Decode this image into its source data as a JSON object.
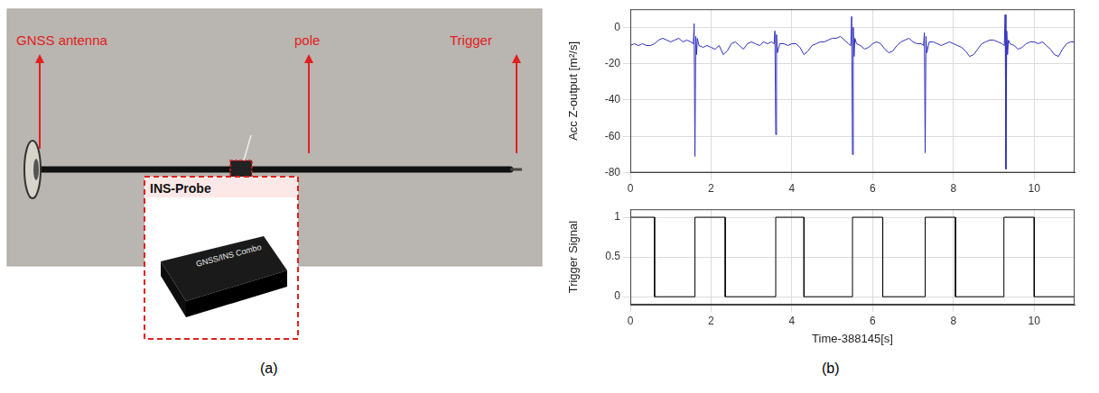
{
  "panel_a": {
    "label": "(a)",
    "callouts": [
      "GNSS antenna",
      "pole",
      "Trigger"
    ],
    "inset": {
      "title": "INS-Probe",
      "device_text": "GNSS/INS Combo"
    }
  },
  "panel_b": {
    "label": "(b)"
  },
  "chart_data": [
    {
      "type": "line",
      "y_label": "Acc Z-output [m²/s]",
      "color": "#2f2fbf",
      "grid": true,
      "xlim": [
        0,
        11
      ],
      "xticks": [
        0,
        2,
        4,
        6,
        8,
        10
      ],
      "ylim": [
        -80,
        10
      ],
      "yticks": [
        -80,
        -60,
        -40,
        -20,
        0
      ],
      "x": [
        0,
        0.1,
        0.2,
        0.3,
        0.4,
        0.5,
        0.6,
        0.7,
        0.8,
        0.9,
        1.0,
        1.1,
        1.2,
        1.3,
        1.4,
        1.5,
        1.56,
        1.58,
        1.6,
        1.62,
        1.64,
        1.66,
        1.7,
        1.8,
        1.9,
        2.0,
        2.1,
        2.2,
        2.3,
        2.4,
        2.5,
        2.6,
        2.7,
        2.8,
        2.9,
        3.0,
        3.1,
        3.2,
        3.3,
        3.4,
        3.5,
        3.56,
        3.58,
        3.6,
        3.62,
        3.64,
        3.7,
        3.8,
        3.9,
        4.0,
        4.1,
        4.2,
        4.3,
        4.4,
        4.5,
        4.6,
        4.7,
        4.8,
        4.9,
        5.0,
        5.1,
        5.2,
        5.3,
        5.4,
        5.46,
        5.48,
        5.5,
        5.52,
        5.54,
        5.56,
        5.6,
        5.7,
        5.8,
        5.9,
        6.0,
        6.1,
        6.2,
        6.3,
        6.4,
        6.5,
        6.6,
        6.7,
        6.8,
        6.9,
        7.0,
        7.1,
        7.2,
        7.26,
        7.28,
        7.3,
        7.32,
        7.34,
        7.4,
        7.5,
        7.6,
        7.7,
        7.8,
        7.9,
        8.0,
        8.1,
        8.2,
        8.3,
        8.4,
        8.5,
        8.6,
        8.7,
        8.8,
        8.9,
        9.0,
        9.1,
        9.2,
        9.26,
        9.28,
        9.3,
        9.32,
        9.34,
        9.36,
        9.4,
        9.5,
        9.6,
        9.7,
        9.8,
        9.9,
        10.0,
        10.1,
        10.2,
        10.3,
        10.4,
        10.5,
        10.6,
        10.7,
        10.8,
        10.9,
        11.0
      ],
      "values": [
        -10,
        -9,
        -10,
        -9,
        -10,
        -10,
        -9,
        -7,
        -6,
        -7,
        -8,
        -7,
        -6,
        -8,
        -7,
        -8,
        -9,
        2,
        -71,
        -5,
        -15,
        -6,
        -10,
        -11,
        -10,
        -11,
        -12,
        -10,
        -15,
        -13,
        -9,
        -8,
        -10,
        -12,
        -9,
        -8,
        -9,
        -10,
        -8,
        -9,
        -8,
        -9,
        -2,
        -59,
        -4,
        -14,
        -9,
        -9,
        -10,
        -9,
        -9,
        -11,
        -15,
        -13,
        -10,
        -9,
        -8,
        -8,
        -7,
        -6,
        -6,
        -5,
        -7,
        -9,
        -10,
        6,
        -70,
        0,
        -16,
        -6,
        -9,
        -10,
        -12,
        -11,
        -9,
        -8,
        -9,
        -12,
        -14,
        -13,
        -10,
        -8,
        -7,
        -6,
        -8,
        -9,
        -9,
        -10,
        -3,
        -69,
        -5,
        -14,
        -8,
        -8,
        -9,
        -10,
        -9,
        -8,
        -9,
        -10,
        -11,
        -13,
        -16,
        -15,
        -12,
        -9,
        -8,
        -7,
        -7,
        -8,
        -9,
        -10,
        7,
        -78,
        -2,
        -15,
        -7,
        -9,
        -10,
        -12,
        -11,
        -9,
        -8,
        -8,
        -9,
        -8,
        -10,
        -12,
        -15,
        -16,
        -12,
        -9,
        -8,
        -8
      ]
    },
    {
      "type": "line",
      "y_label": "Trigger Signal",
      "x_label": "Time-388145[s]",
      "color": "#000000",
      "grid": true,
      "xlim": [
        0,
        11
      ],
      "xticks": [
        0,
        2,
        4,
        6,
        8,
        10
      ],
      "ylim": [
        -0.1,
        1.1
      ],
      "yticks": [
        0,
        0.5,
        1
      ],
      "x": [
        0,
        0.6,
        0.6,
        1.6,
        1.6,
        2.35,
        2.35,
        3.6,
        3.6,
        4.3,
        4.3,
        5.5,
        5.5,
        6.25,
        6.25,
        7.3,
        7.3,
        8.05,
        8.05,
        9.25,
        9.25,
        10.0,
        10.0,
        11.0
      ],
      "values": [
        1,
        1,
        0,
        0,
        1,
        1,
        0,
        0,
        1,
        1,
        0,
        0,
        1,
        1,
        0,
        0,
        1,
        1,
        0,
        0,
        1,
        1,
        0,
        0
      ]
    }
  ]
}
